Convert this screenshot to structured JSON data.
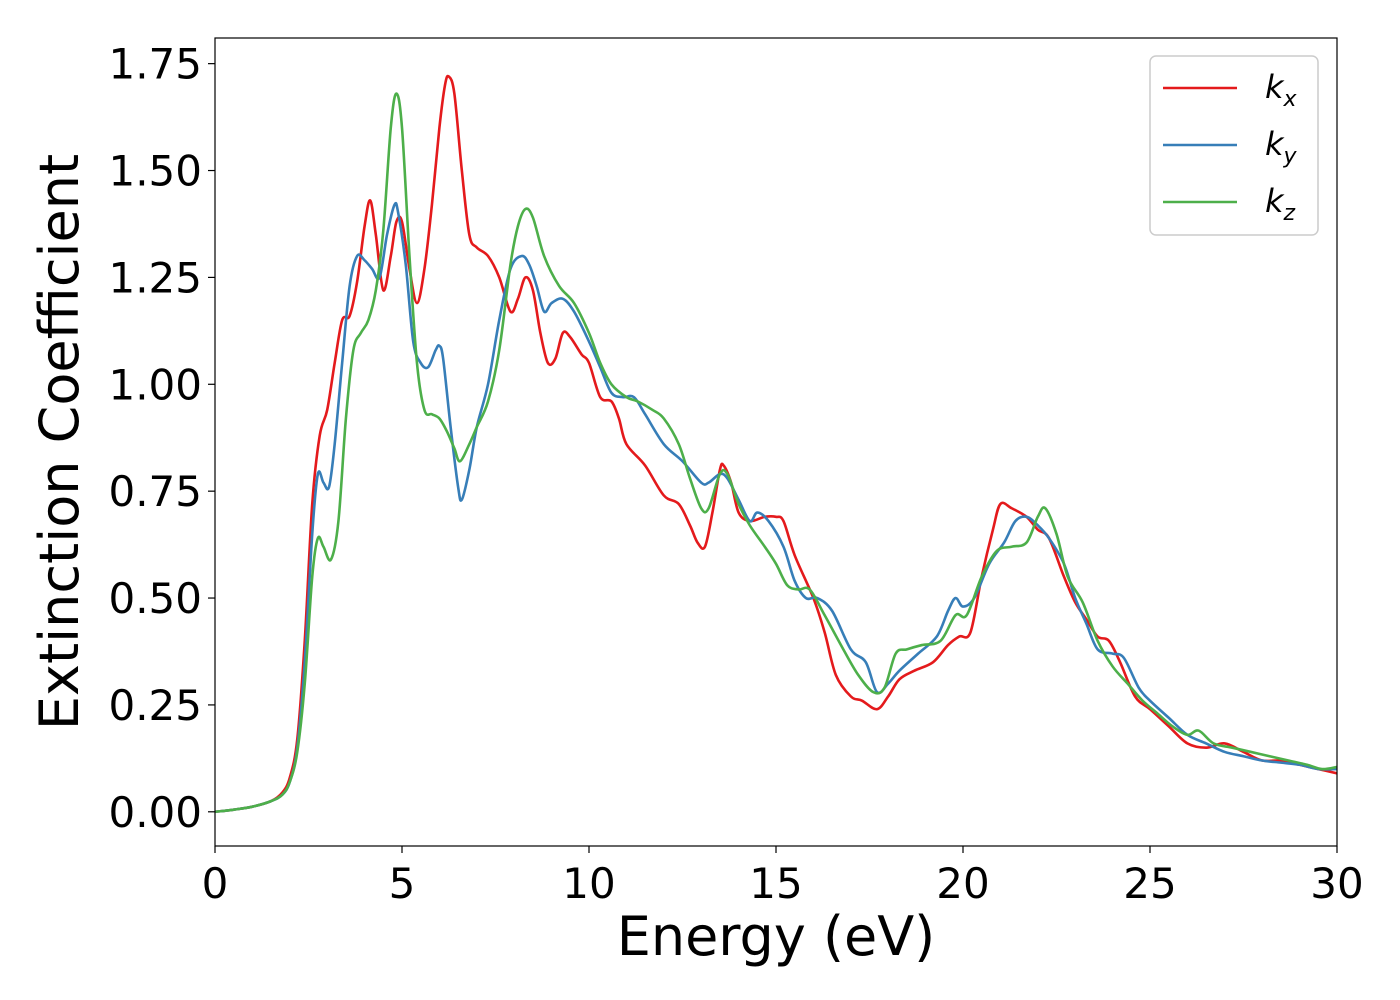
{
  "chart_data": {
    "type": "line",
    "title": "",
    "xlabel": "Energy (eV)",
    "ylabel": "Extinction Coefficient",
    "xlim": [
      0,
      30
    ],
    "ylim": [
      -0.08,
      1.81
    ],
    "xticks": [
      0,
      5,
      10,
      15,
      20,
      25,
      30
    ],
    "xtick_labels": [
      "0",
      "5",
      "10",
      "15",
      "20",
      "25",
      "30"
    ],
    "yticks": [
      0,
      0.25,
      0.5,
      0.75,
      1.0,
      1.25,
      1.5,
      1.75
    ],
    "ytick_labels": [
      "0.00",
      "0.25",
      "0.50",
      "0.75",
      "1.00",
      "1.25",
      "1.50",
      "1.75"
    ],
    "grid": false,
    "legend_position": "top-right",
    "series": [
      {
        "name": "k_x",
        "label_base": "k",
        "label_sub": "x",
        "color": "#e41a1c",
        "points": [
          [
            0,
            0.0
          ],
          [
            0.5,
            0.005
          ],
          [
            1.0,
            0.012
          ],
          [
            1.5,
            0.025
          ],
          [
            1.8,
            0.045
          ],
          [
            2.0,
            0.08
          ],
          [
            2.2,
            0.17
          ],
          [
            2.4,
            0.4
          ],
          [
            2.6,
            0.72
          ],
          [
            2.8,
            0.88
          ],
          [
            3.0,
            0.94
          ],
          [
            3.2,
            1.05
          ],
          [
            3.4,
            1.15
          ],
          [
            3.6,
            1.16
          ],
          [
            3.8,
            1.24
          ],
          [
            4.0,
            1.37
          ],
          [
            4.15,
            1.43
          ],
          [
            4.3,
            1.35
          ],
          [
            4.5,
            1.22
          ],
          [
            4.7,
            1.3
          ],
          [
            4.85,
            1.38
          ],
          [
            5.0,
            1.38
          ],
          [
            5.2,
            1.27
          ],
          [
            5.4,
            1.19
          ],
          [
            5.6,
            1.27
          ],
          [
            5.8,
            1.42
          ],
          [
            6.0,
            1.6
          ],
          [
            6.15,
            1.7
          ],
          [
            6.25,
            1.72
          ],
          [
            6.4,
            1.68
          ],
          [
            6.6,
            1.5
          ],
          [
            6.8,
            1.35
          ],
          [
            7.0,
            1.32
          ],
          [
            7.3,
            1.3
          ],
          [
            7.6,
            1.25
          ],
          [
            7.9,
            1.17
          ],
          [
            8.1,
            1.2
          ],
          [
            8.3,
            1.25
          ],
          [
            8.5,
            1.22
          ],
          [
            8.7,
            1.12
          ],
          [
            8.9,
            1.05
          ],
          [
            9.1,
            1.06
          ],
          [
            9.3,
            1.12
          ],
          [
            9.5,
            1.11
          ],
          [
            9.8,
            1.07
          ],
          [
            10.0,
            1.05
          ],
          [
            10.3,
            0.97
          ],
          [
            10.6,
            0.96
          ],
          [
            10.8,
            0.92
          ],
          [
            11.0,
            0.86
          ],
          [
            11.5,
            0.81
          ],
          [
            12.0,
            0.74
          ],
          [
            12.4,
            0.72
          ],
          [
            12.7,
            0.67
          ],
          [
            12.9,
            0.63
          ],
          [
            13.1,
            0.62
          ],
          [
            13.3,
            0.7
          ],
          [
            13.5,
            0.8
          ],
          [
            13.6,
            0.81
          ],
          [
            13.8,
            0.77
          ],
          [
            14.0,
            0.7
          ],
          [
            14.3,
            0.68
          ],
          [
            14.7,
            0.69
          ],
          [
            15.0,
            0.69
          ],
          [
            15.2,
            0.68
          ],
          [
            15.5,
            0.6
          ],
          [
            16.0,
            0.5
          ],
          [
            16.3,
            0.42
          ],
          [
            16.6,
            0.32
          ],
          [
            17.0,
            0.27
          ],
          [
            17.3,
            0.26
          ],
          [
            17.7,
            0.24
          ],
          [
            18.0,
            0.27
          ],
          [
            18.3,
            0.31
          ],
          [
            18.7,
            0.33
          ],
          [
            19.2,
            0.35
          ],
          [
            19.6,
            0.39
          ],
          [
            19.9,
            0.41
          ],
          [
            20.2,
            0.42
          ],
          [
            20.5,
            0.55
          ],
          [
            20.8,
            0.66
          ],
          [
            21.0,
            0.72
          ],
          [
            21.3,
            0.71
          ],
          [
            21.7,
            0.69
          ],
          [
            22.0,
            0.66
          ],
          [
            22.3,
            0.64
          ],
          [
            22.7,
            0.55
          ],
          [
            23.0,
            0.49
          ],
          [
            23.3,
            0.45
          ],
          [
            23.6,
            0.41
          ],
          [
            23.9,
            0.4
          ],
          [
            24.2,
            0.35
          ],
          [
            24.6,
            0.27
          ],
          [
            25.0,
            0.24
          ],
          [
            25.5,
            0.2
          ],
          [
            26.0,
            0.16
          ],
          [
            26.5,
            0.15
          ],
          [
            27.0,
            0.16
          ],
          [
            27.5,
            0.14
          ],
          [
            28.0,
            0.12
          ],
          [
            28.5,
            0.12
          ],
          [
            29.0,
            0.11
          ],
          [
            29.5,
            0.1
          ],
          [
            30.0,
            0.09
          ]
        ]
      },
      {
        "name": "k_y",
        "label_base": "k",
        "label_sub": "y",
        "color": "#377eb8",
        "points": [
          [
            0,
            0.0
          ],
          [
            0.5,
            0.005
          ],
          [
            1.0,
            0.012
          ],
          [
            1.5,
            0.025
          ],
          [
            1.8,
            0.04
          ],
          [
            2.0,
            0.07
          ],
          [
            2.2,
            0.15
          ],
          [
            2.4,
            0.35
          ],
          [
            2.6,
            0.65
          ],
          [
            2.75,
            0.79
          ],
          [
            2.9,
            0.77
          ],
          [
            3.05,
            0.76
          ],
          [
            3.2,
            0.86
          ],
          [
            3.4,
            1.05
          ],
          [
            3.6,
            1.23
          ],
          [
            3.8,
            1.3
          ],
          [
            4.0,
            1.29
          ],
          [
            4.2,
            1.27
          ],
          [
            4.4,
            1.25
          ],
          [
            4.6,
            1.35
          ],
          [
            4.8,
            1.42
          ],
          [
            4.9,
            1.4
          ],
          [
            5.1,
            1.28
          ],
          [
            5.3,
            1.1
          ],
          [
            5.5,
            1.05
          ],
          [
            5.7,
            1.04
          ],
          [
            5.9,
            1.08
          ],
          [
            6.0,
            1.09
          ],
          [
            6.1,
            1.06
          ],
          [
            6.3,
            0.9
          ],
          [
            6.5,
            0.76
          ],
          [
            6.6,
            0.73
          ],
          [
            6.8,
            0.8
          ],
          [
            7.0,
            0.9
          ],
          [
            7.3,
            1.0
          ],
          [
            7.6,
            1.15
          ],
          [
            7.9,
            1.27
          ],
          [
            8.2,
            1.3
          ],
          [
            8.4,
            1.28
          ],
          [
            8.6,
            1.23
          ],
          [
            8.8,
            1.17
          ],
          [
            9.0,
            1.19
          ],
          [
            9.3,
            1.2
          ],
          [
            9.6,
            1.17
          ],
          [
            10.0,
            1.1
          ],
          [
            10.3,
            1.04
          ],
          [
            10.6,
            0.98
          ],
          [
            10.9,
            0.97
          ],
          [
            11.2,
            0.97
          ],
          [
            11.5,
            0.93
          ],
          [
            12.0,
            0.86
          ],
          [
            12.5,
            0.82
          ],
          [
            13.0,
            0.77
          ],
          [
            13.2,
            0.77
          ],
          [
            13.5,
            0.79
          ],
          [
            13.7,
            0.78
          ],
          [
            14.0,
            0.73
          ],
          [
            14.3,
            0.68
          ],
          [
            14.5,
            0.7
          ],
          [
            14.8,
            0.68
          ],
          [
            15.2,
            0.62
          ],
          [
            15.5,
            0.54
          ],
          [
            15.8,
            0.5
          ],
          [
            16.1,
            0.5
          ],
          [
            16.5,
            0.47
          ],
          [
            17.0,
            0.38
          ],
          [
            17.4,
            0.35
          ],
          [
            17.7,
            0.28
          ],
          [
            18.0,
            0.3
          ],
          [
            18.3,
            0.33
          ],
          [
            18.8,
            0.37
          ],
          [
            19.3,
            0.41
          ],
          [
            19.6,
            0.47
          ],
          [
            19.8,
            0.5
          ],
          [
            20.0,
            0.48
          ],
          [
            20.3,
            0.5
          ],
          [
            20.7,
            0.58
          ],
          [
            21.1,
            0.63
          ],
          [
            21.4,
            0.68
          ],
          [
            21.7,
            0.69
          ],
          [
            22.0,
            0.67
          ],
          [
            22.3,
            0.64
          ],
          [
            22.7,
            0.58
          ],
          [
            23.0,
            0.5
          ],
          [
            23.3,
            0.44
          ],
          [
            23.6,
            0.38
          ],
          [
            24.0,
            0.37
          ],
          [
            24.3,
            0.36
          ],
          [
            24.7,
            0.29
          ],
          [
            25.0,
            0.26
          ],
          [
            25.5,
            0.22
          ],
          [
            26.0,
            0.18
          ],
          [
            26.5,
            0.16
          ],
          [
            27.0,
            0.14
          ],
          [
            27.5,
            0.13
          ],
          [
            28.0,
            0.12
          ],
          [
            28.5,
            0.115
          ],
          [
            29.0,
            0.11
          ],
          [
            29.5,
            0.1
          ],
          [
            30.0,
            0.1
          ]
        ]
      },
      {
        "name": "k_z",
        "label_base": "k",
        "label_sub": "z",
        "color": "#4daf4a",
        "points": [
          [
            0,
            0.0
          ],
          [
            0.5,
            0.005
          ],
          [
            1.0,
            0.012
          ],
          [
            1.5,
            0.025
          ],
          [
            1.8,
            0.04
          ],
          [
            2.0,
            0.07
          ],
          [
            2.2,
            0.14
          ],
          [
            2.4,
            0.3
          ],
          [
            2.6,
            0.55
          ],
          [
            2.75,
            0.64
          ],
          [
            2.9,
            0.62
          ],
          [
            3.1,
            0.59
          ],
          [
            3.3,
            0.68
          ],
          [
            3.5,
            0.92
          ],
          [
            3.7,
            1.08
          ],
          [
            3.9,
            1.12
          ],
          [
            4.1,
            1.15
          ],
          [
            4.3,
            1.22
          ],
          [
            4.5,
            1.36
          ],
          [
            4.7,
            1.6
          ],
          [
            4.85,
            1.68
          ],
          [
            5.0,
            1.6
          ],
          [
            5.2,
            1.3
          ],
          [
            5.4,
            1.05
          ],
          [
            5.6,
            0.94
          ],
          [
            5.8,
            0.93
          ],
          [
            6.0,
            0.92
          ],
          [
            6.2,
            0.89
          ],
          [
            6.4,
            0.85
          ],
          [
            6.55,
            0.82
          ],
          [
            6.8,
            0.86
          ],
          [
            7.0,
            0.9
          ],
          [
            7.3,
            0.96
          ],
          [
            7.6,
            1.08
          ],
          [
            7.9,
            1.28
          ],
          [
            8.1,
            1.37
          ],
          [
            8.3,
            1.41
          ],
          [
            8.5,
            1.39
          ],
          [
            8.8,
            1.3
          ],
          [
            9.2,
            1.23
          ],
          [
            9.6,
            1.19
          ],
          [
            10.0,
            1.12
          ],
          [
            10.3,
            1.05
          ],
          [
            10.6,
            1.0
          ],
          [
            11.0,
            0.97
          ],
          [
            11.3,
            0.96
          ],
          [
            11.7,
            0.94
          ],
          [
            12.0,
            0.92
          ],
          [
            12.4,
            0.86
          ],
          [
            12.7,
            0.78
          ],
          [
            13.0,
            0.71
          ],
          [
            13.2,
            0.71
          ],
          [
            13.5,
            0.79
          ],
          [
            13.7,
            0.79
          ],
          [
            14.0,
            0.72
          ],
          [
            14.3,
            0.67
          ],
          [
            14.7,
            0.62
          ],
          [
            15.0,
            0.58
          ],
          [
            15.3,
            0.53
          ],
          [
            15.6,
            0.52
          ],
          [
            15.9,
            0.52
          ],
          [
            16.3,
            0.46
          ],
          [
            16.8,
            0.38
          ],
          [
            17.2,
            0.32
          ],
          [
            17.6,
            0.28
          ],
          [
            17.9,
            0.29
          ],
          [
            18.2,
            0.37
          ],
          [
            18.5,
            0.38
          ],
          [
            18.9,
            0.39
          ],
          [
            19.4,
            0.4
          ],
          [
            19.8,
            0.46
          ],
          [
            20.1,
            0.46
          ],
          [
            20.5,
            0.55
          ],
          [
            20.9,
            0.61
          ],
          [
            21.3,
            0.62
          ],
          [
            21.7,
            0.63
          ],
          [
            22.0,
            0.69
          ],
          [
            22.2,
            0.71
          ],
          [
            22.5,
            0.65
          ],
          [
            22.8,
            0.55
          ],
          [
            23.2,
            0.49
          ],
          [
            23.6,
            0.4
          ],
          [
            24.0,
            0.34
          ],
          [
            24.4,
            0.3
          ],
          [
            24.8,
            0.26
          ],
          [
            25.2,
            0.23
          ],
          [
            25.6,
            0.2
          ],
          [
            26.0,
            0.18
          ],
          [
            26.3,
            0.19
          ],
          [
            26.7,
            0.16
          ],
          [
            27.2,
            0.15
          ],
          [
            27.7,
            0.14
          ],
          [
            28.2,
            0.13
          ],
          [
            28.7,
            0.12
          ],
          [
            29.2,
            0.11
          ],
          [
            29.6,
            0.1
          ],
          [
            30.0,
            0.105
          ]
        ]
      }
    ]
  }
}
